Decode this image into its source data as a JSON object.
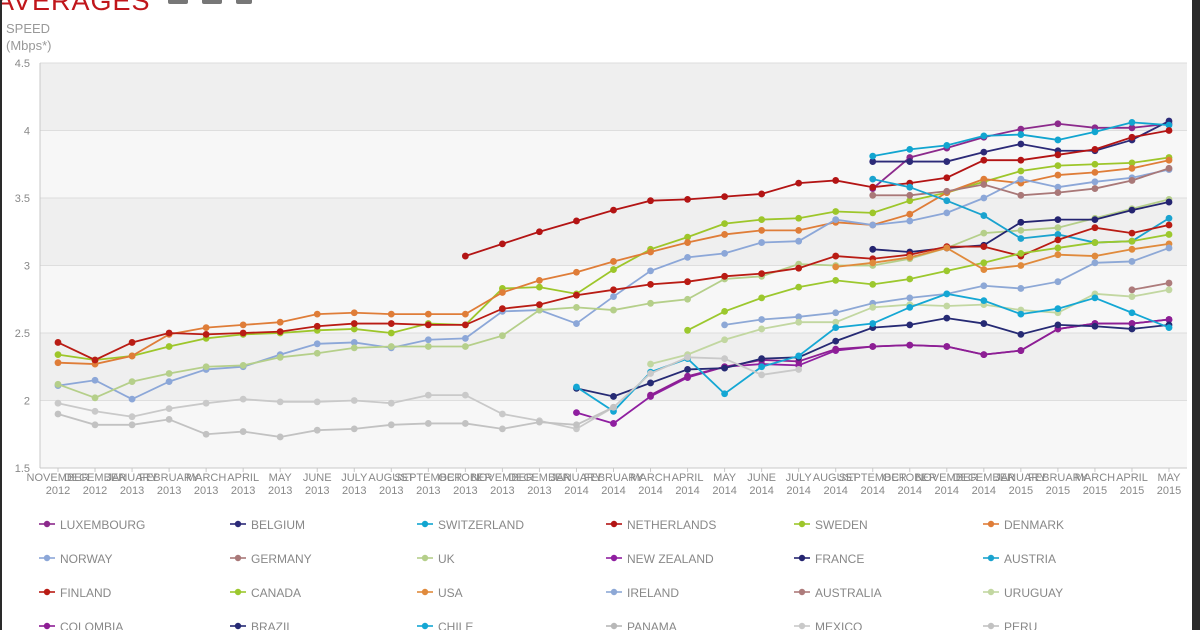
{
  "heading": {
    "title": "AVERAGES",
    "icons": [
      "print-icon",
      "email-icon",
      "share-icon"
    ]
  },
  "chart_data": {
    "type": "line",
    "ylabel": "SPEED\n(Mbps*)",
    "ylabel_line1": "SPEED",
    "ylabel_line2": "(Mbps*)",
    "ylim": [
      1.5,
      4.5
    ],
    "yticks": [
      "1.5",
      "2",
      "2.5",
      "3",
      "3.5",
      "4",
      "4.5"
    ],
    "grid": true,
    "legend_position": "bottom",
    "categories": [
      [
        "NOVEMBER",
        "2012"
      ],
      [
        "DECEMBER",
        "2012"
      ],
      [
        "JANUARY",
        "2013"
      ],
      [
        "FEBRUARY",
        "2013"
      ],
      [
        "MARCH",
        "2013"
      ],
      [
        "APRIL",
        "2013"
      ],
      [
        "MAY",
        "2013"
      ],
      [
        "JUNE",
        "2013"
      ],
      [
        "JULY",
        "2013"
      ],
      [
        "AUGUST",
        "2013"
      ],
      [
        "SEPTEMBER",
        "2013"
      ],
      [
        "OCTOBER",
        "2013"
      ],
      [
        "NOVEMBER",
        "2013"
      ],
      [
        "DECEMBER",
        "2013"
      ],
      [
        "JANUARY",
        "2014"
      ],
      [
        "FEBRUARY",
        "2014"
      ],
      [
        "MARCH",
        "2014"
      ],
      [
        "APRIL",
        "2014"
      ],
      [
        "MAY",
        "2014"
      ],
      [
        "JUNE",
        "2014"
      ],
      [
        "JULY",
        "2014"
      ],
      [
        "AUGUST",
        "2014"
      ],
      [
        "SEPTEMBER",
        "2014"
      ],
      [
        "OCTOBER",
        "2014"
      ],
      [
        "NOVEMBER",
        "2014"
      ],
      [
        "DECEMBER",
        "2014"
      ],
      [
        "JANUARY",
        "2015"
      ],
      [
        "FEBRUARY",
        "2015"
      ],
      [
        "MARCH",
        "2015"
      ],
      [
        "APRIL",
        "2015"
      ],
      [
        "MAY",
        "2015"
      ]
    ],
    "series": [
      {
        "name": "LUXEMBOURG",
        "color": "#8c2a8c",
        "values": [
          null,
          null,
          null,
          null,
          null,
          null,
          null,
          null,
          null,
          null,
          null,
          null,
          null,
          null,
          null,
          null,
          null,
          null,
          null,
          null,
          null,
          null,
          3.57,
          3.8,
          3.87,
          3.95,
          4.01,
          4.05,
          4.02,
          4.02,
          4.05
        ]
      },
      {
        "name": "BELGIUM",
        "color": "#2c2a78",
        "values": [
          null,
          null,
          null,
          null,
          null,
          null,
          null,
          null,
          null,
          null,
          null,
          null,
          null,
          null,
          null,
          null,
          null,
          null,
          null,
          null,
          null,
          null,
          3.77,
          3.77,
          3.77,
          3.84,
          3.9,
          3.85,
          3.85,
          3.93,
          4.07
        ]
      },
      {
        "name": "SWITZERLAND",
        "color": "#11a5d0",
        "values": [
          null,
          null,
          null,
          null,
          null,
          null,
          null,
          null,
          null,
          null,
          null,
          null,
          null,
          null,
          null,
          null,
          null,
          null,
          null,
          null,
          null,
          null,
          3.81,
          3.86,
          3.89,
          3.96,
          3.97,
          3.93,
          3.99,
          4.06,
          4.04
        ]
      },
      {
        "name": "NETHERLANDS",
        "color": "#b31414",
        "values": [
          null,
          null,
          null,
          null,
          null,
          null,
          null,
          null,
          null,
          null,
          null,
          3.07,
          3.16,
          3.25,
          3.33,
          3.41,
          3.48,
          3.49,
          3.51,
          3.53,
          3.61,
          3.63,
          3.58,
          3.61,
          3.65,
          3.78,
          3.78,
          3.82,
          3.86,
          3.95,
          4.0
        ]
      },
      {
        "name": "SWEDEN",
        "color": "#9dc62a",
        "values": [
          2.34,
          2.3,
          2.33,
          2.4,
          2.46,
          2.49,
          2.5,
          2.52,
          2.53,
          2.5,
          2.57,
          2.56,
          2.83,
          2.84,
          2.79,
          2.97,
          3.12,
          3.21,
          3.31,
          3.34,
          3.35,
          3.4,
          3.39,
          3.48,
          3.54,
          3.62,
          3.7,
          3.74,
          3.75,
          3.76,
          3.8
        ]
      },
      {
        "name": "DENMARK",
        "color": "#df7d38",
        "values": [
          2.28,
          2.27,
          2.33,
          2.49,
          2.54,
          2.56,
          2.58,
          2.64,
          2.65,
          2.64,
          2.64,
          2.64,
          2.8,
          2.89,
          2.95,
          3.03,
          3.1,
          3.17,
          3.23,
          3.26,
          3.26,
          3.32,
          3.3,
          3.38,
          3.54,
          3.64,
          3.61,
          3.67,
          3.69,
          3.72,
          3.78
        ]
      },
      {
        "name": "NORWAY",
        "color": "#8ca7d8",
        "values": [
          2.11,
          2.15,
          2.01,
          2.14,
          2.23,
          2.25,
          2.34,
          2.42,
          2.43,
          2.39,
          2.45,
          2.46,
          2.66,
          2.67,
          2.57,
          2.77,
          2.96,
          3.06,
          3.09,
          3.17,
          3.18,
          3.34,
          3.3,
          3.33,
          3.39,
          3.5,
          3.64,
          3.58,
          3.62,
          3.65,
          3.71
        ]
      },
      {
        "name": "GERMANY",
        "color": "#a97878",
        "values": [
          null,
          null,
          null,
          null,
          null,
          null,
          null,
          null,
          null,
          null,
          null,
          null,
          null,
          null,
          null,
          null,
          null,
          null,
          null,
          null,
          null,
          null,
          3.52,
          3.52,
          3.55,
          3.6,
          3.52,
          3.54,
          3.57,
          3.63,
          3.72
        ]
      },
      {
        "name": "UK",
        "color": "#b5cf8a",
        "values": [
          2.12,
          2.02,
          2.14,
          2.2,
          2.25,
          2.26,
          2.32,
          2.35,
          2.39,
          2.4,
          2.4,
          2.4,
          2.48,
          2.67,
          2.69,
          2.67,
          2.72,
          2.75,
          2.9,
          2.92,
          3.01,
          3.0,
          3.0,
          3.05,
          3.13,
          3.24,
          3.26,
          3.28,
          3.35,
          3.42,
          3.49
        ]
      },
      {
        "name": "NEW ZEALAND",
        "color": "#8f1fa0",
        "values": [
          null,
          null,
          null,
          null,
          null,
          null,
          null,
          null,
          null,
          null,
          null,
          null,
          null,
          null,
          1.91,
          1.83,
          2.03,
          2.17,
          2.25,
          2.27,
          2.26,
          2.37,
          2.4,
          2.41,
          2.4,
          2.34,
          2.37,
          2.53,
          2.57,
          2.57,
          2.6
        ]
      },
      {
        "name": "FRANCE",
        "color": "#242470",
        "values": [
          null,
          null,
          null,
          null,
          null,
          null,
          null,
          null,
          null,
          null,
          null,
          null,
          null,
          null,
          null,
          null,
          null,
          null,
          null,
          null,
          null,
          null,
          3.12,
          3.1,
          3.13,
          3.15,
          3.32,
          3.34,
          3.34,
          3.41,
          3.47
        ]
      },
      {
        "name": "AUSTRIA",
        "color": "#1aa3cf",
        "values": [
          null,
          null,
          null,
          null,
          null,
          null,
          null,
          null,
          null,
          null,
          null,
          null,
          null,
          null,
          null,
          null,
          null,
          null,
          null,
          null,
          null,
          null,
          3.64,
          3.58,
          3.48,
          3.37,
          3.2,
          3.23,
          3.17,
          3.18,
          3.35
        ]
      },
      {
        "name": "FINLAND",
        "color": "#b91c14",
        "values": [
          2.43,
          2.3,
          2.43,
          2.5,
          2.49,
          2.5,
          2.51,
          2.55,
          2.57,
          2.57,
          2.56,
          2.56,
          2.68,
          2.71,
          2.78,
          2.82,
          2.86,
          2.88,
          2.92,
          2.94,
          2.98,
          3.07,
          3.05,
          3.08,
          3.14,
          3.14,
          3.07,
          3.19,
          3.28,
          3.24,
          3.3
        ]
      },
      {
        "name": "CANADA",
        "color": "#9cc82e",
        "values": [
          null,
          null,
          null,
          null,
          null,
          null,
          null,
          null,
          null,
          null,
          null,
          null,
          null,
          null,
          null,
          null,
          null,
          2.52,
          2.66,
          2.76,
          2.84,
          2.89,
          2.86,
          2.9,
          2.96,
          3.02,
          3.09,
          3.13,
          3.17,
          3.18,
          3.23
        ]
      },
      {
        "name": "USA",
        "color": "#e08a3c",
        "values": [
          null,
          null,
          null,
          null,
          null,
          null,
          null,
          null,
          null,
          null,
          null,
          null,
          null,
          null,
          null,
          null,
          null,
          null,
          null,
          null,
          null,
          2.99,
          3.02,
          3.06,
          3.13,
          2.97,
          3.0,
          3.08,
          3.07,
          3.12,
          3.16
        ]
      },
      {
        "name": "IRELAND",
        "color": "#8da8d6",
        "values": [
          null,
          null,
          null,
          null,
          null,
          null,
          null,
          null,
          null,
          null,
          null,
          null,
          null,
          null,
          null,
          null,
          null,
          null,
          2.56,
          2.6,
          2.62,
          2.65,
          2.72,
          2.76,
          2.79,
          2.85,
          2.83,
          2.88,
          3.02,
          3.03,
          3.13
        ]
      },
      {
        "name": "AUSTRALIA",
        "color": "#ad7b7b",
        "values": [
          null,
          null,
          null,
          null,
          null,
          null,
          null,
          null,
          null,
          null,
          null,
          null,
          null,
          null,
          null,
          null,
          null,
          null,
          null,
          null,
          null,
          null,
          null,
          null,
          null,
          null,
          null,
          null,
          null,
          2.82,
          2.87
        ]
      },
      {
        "name": "URUGUAY",
        "color": "#c2d7a1",
        "values": [
          null,
          null,
          null,
          null,
          null,
          null,
          null,
          null,
          null,
          null,
          null,
          null,
          null,
          null,
          null,
          null,
          2.27,
          2.34,
          2.45,
          2.53,
          2.58,
          2.58,
          2.69,
          2.71,
          2.7,
          2.71,
          2.67,
          2.65,
          2.79,
          2.77,
          2.82
        ]
      },
      {
        "name": "COLOMBIA",
        "color": "#8d1e94",
        "values": [
          null,
          null,
          null,
          null,
          null,
          null,
          null,
          null,
          null,
          null,
          null,
          null,
          null,
          null,
          null,
          null,
          2.04,
          2.18,
          2.25,
          2.3,
          2.29,
          2.38,
          2.4,
          2.41,
          2.4,
          2.34,
          2.37,
          2.53,
          2.57,
          2.57,
          2.6
        ]
      },
      {
        "name": "BRAZIL",
        "color": "#262a74",
        "values": [
          null,
          null,
          null,
          null,
          null,
          null,
          null,
          null,
          null,
          null,
          null,
          null,
          null,
          null,
          2.09,
          2.03,
          2.13,
          2.23,
          2.24,
          2.31,
          2.32,
          2.44,
          2.54,
          2.56,
          2.61,
          2.57,
          2.49,
          2.56,
          2.55,
          2.53,
          2.56
        ]
      },
      {
        "name": "CHILE",
        "color": "#14a7d4",
        "values": [
          null,
          null,
          null,
          null,
          null,
          null,
          null,
          null,
          null,
          null,
          null,
          null,
          null,
          null,
          2.1,
          1.92,
          2.21,
          2.31,
          2.05,
          2.25,
          2.33,
          2.54,
          2.57,
          2.69,
          2.79,
          2.74,
          2.64,
          2.68,
          2.76,
          2.65,
          2.54
        ]
      },
      {
        "name": "PANAMA",
        "color": "#b8b8b8",
        "values": [
          null,
          null,
          null,
          null,
          null,
          null,
          null,
          null,
          null,
          null,
          null,
          null,
          null,
          null,
          null,
          null,
          null,
          null,
          null,
          null,
          null,
          null,
          null,
          null,
          null,
          null,
          null,
          null,
          null,
          null,
          null
        ]
      },
      {
        "name": "MEXICO",
        "color": "#c9c9c9",
        "values": [
          1.98,
          1.92,
          1.88,
          1.94,
          1.98,
          2.01,
          1.99,
          1.99,
          2.0,
          1.98,
          2.04,
          2.04,
          1.9,
          1.85,
          1.79,
          1.95,
          2.2,
          2.32,
          2.31,
          2.19,
          2.23,
          null,
          null,
          null,
          null,
          null,
          null,
          null,
          null,
          null,
          null
        ]
      },
      {
        "name": "PERU",
        "color": "#c2c2c2",
        "values": [
          1.9,
          1.82,
          1.82,
          1.86,
          1.75,
          1.77,
          1.73,
          1.78,
          1.79,
          1.82,
          1.83,
          1.83,
          1.79,
          1.84,
          1.82,
          1.95,
          null,
          null,
          null,
          null,
          null,
          null,
          null,
          null,
          null,
          null,
          null,
          null,
          null,
          null,
          null
        ]
      }
    ]
  }
}
